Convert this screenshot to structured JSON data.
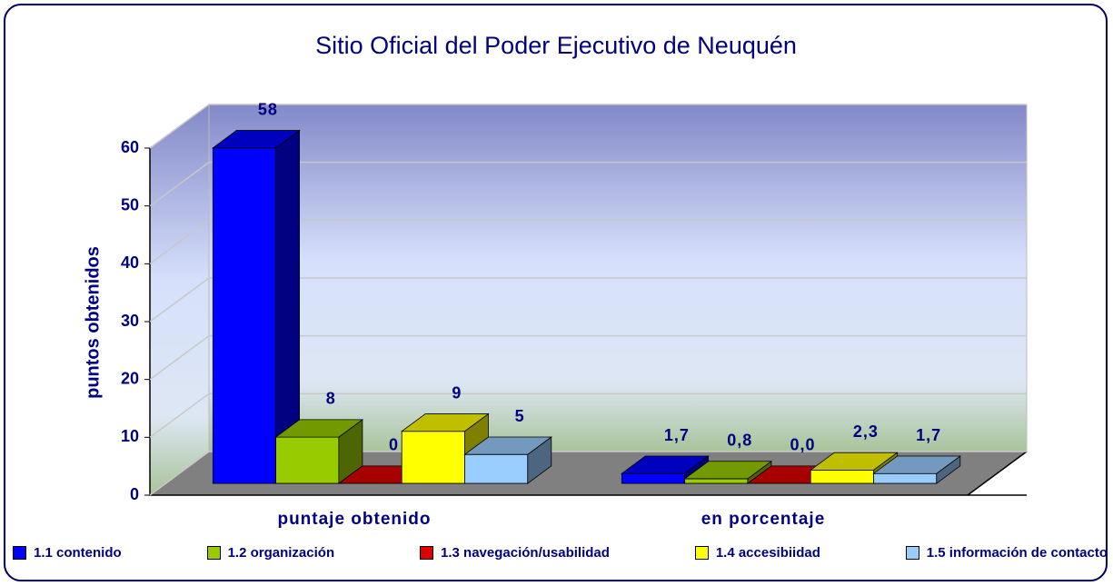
{
  "chart_data": {
    "type": "bar3d",
    "title": "Sitio Oficial del Poder Ejecutivo de Neuquén",
    "ylabel": "puntos obtenidos",
    "categories": [
      "puntaje obtenido",
      "en porcentaje"
    ],
    "series": [
      {
        "name": "1.1 contenido",
        "color": "#0000ff",
        "values": [
          58,
          1.7
        ],
        "value_labels": [
          "58",
          "1,7"
        ]
      },
      {
        "name": "1.2 organización",
        "color": "#99cc00",
        "values": [
          8,
          0.8
        ],
        "value_labels": [
          "8",
          "0,8"
        ]
      },
      {
        "name": "1.3 navegación/usabilidad",
        "color": "#dd0000",
        "values": [
          0,
          0.0
        ],
        "value_labels": [
          "0",
          "0,0"
        ]
      },
      {
        "name": "1.4 accesibiidad",
        "color": "#ffff00",
        "values": [
          9,
          2.3
        ],
        "value_labels": [
          "9",
          "2,3"
        ]
      },
      {
        "name": "1.5 información de contacto",
        "color": "#99ccff",
        "values": [
          5,
          1.7
        ],
        "value_labels": [
          "5",
          "1,7"
        ]
      }
    ],
    "ylim": [
      0,
      60
    ],
    "yticks": [
      0,
      10,
      20,
      30,
      40,
      50,
      60
    ],
    "grid": true,
    "legend": "bottom"
  }
}
